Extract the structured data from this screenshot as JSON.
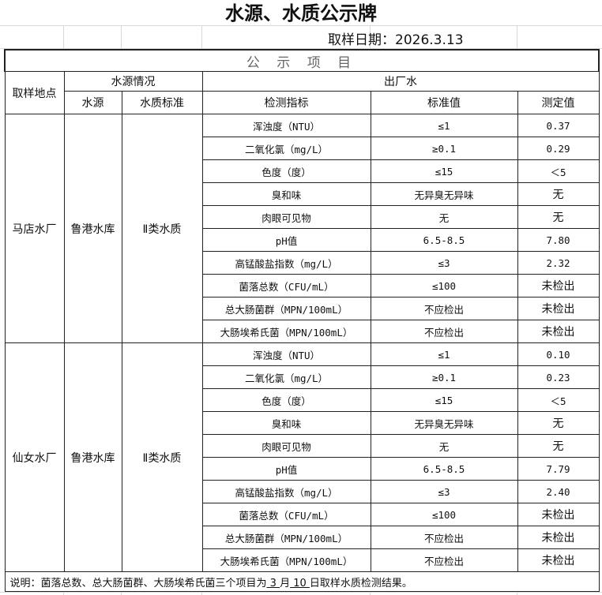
{
  "title": "水源、水质公示牌",
  "date": "取样日期：2026.3.13",
  "section": "公 示 项 目",
  "headers": {
    "site": "取样地点",
    "source_info": "水源情况",
    "outlet": "出厂水",
    "source": "水源",
    "standard": "水质标准",
    "indicator": "检测指标",
    "std_value": "标准值",
    "measured": "测定值"
  },
  "plants": [
    {
      "name": "马店水厂",
      "source": "鲁港水库",
      "grade": "Ⅱ类水质",
      "rows": [
        [
          "浑浊度（NTU）",
          "≤1",
          "0.37"
        ],
        [
          "二氧化氯（mg/L）",
          "≥0.1",
          "0.29"
        ],
        [
          "色度（度）",
          "≤15",
          "＜5"
        ],
        [
          "臭和味",
          "无异臭无异味",
          "无"
        ],
        [
          "肉眼可见物",
          "无",
          "无"
        ],
        [
          "pH值",
          "6.5-8.5",
          "7.80"
        ],
        [
          "高锰酸盐指数（mg/L）",
          "≤3",
          "2.32"
        ],
        [
          "菌落总数（CFU/mL）",
          "≤100",
          "未检出"
        ],
        [
          "总大肠菌群（MPN/100mL）",
          "不应检出",
          "未检出"
        ],
        [
          "大肠埃希氏菌（MPN/100mL）",
          "不应检出",
          "未检出"
        ]
      ]
    },
    {
      "name": "仙女水厂",
      "source": "鲁港水库",
      "grade": "Ⅱ类水质",
      "rows": [
        [
          "浑浊度（NTU）",
          "≤1",
          "0.10"
        ],
        [
          "二氧化氯（mg/L）",
          "≥0.1",
          "0.23"
        ],
        [
          "色度（度）",
          "≤15",
          "＜5"
        ],
        [
          "臭和味",
          "无异臭无异味",
          "无"
        ],
        [
          "肉眼可见物",
          "无",
          "无"
        ],
        [
          "pH值",
          "6.5-8.5",
          "7.79"
        ],
        [
          "高锰酸盐指数（mg/L）",
          "≤3",
          "2.40"
        ],
        [
          "菌落总数（CFU/mL）",
          "≤100",
          "未检出"
        ],
        [
          "总大肠菌群（MPN/100mL）",
          "不应检出",
          "未检出"
        ],
        [
          "大肠埃希氏菌（MPN/100mL）",
          "不应检出",
          "未检出"
        ]
      ]
    }
  ],
  "note": {
    "prefix": "说明：菌落总数、总大肠菌群、大肠埃希氏菌三个项目为",
    "month": " 3 ",
    "month_label": "月",
    "day": " 10 ",
    "suffix": "日取样水质检测结果。"
  }
}
